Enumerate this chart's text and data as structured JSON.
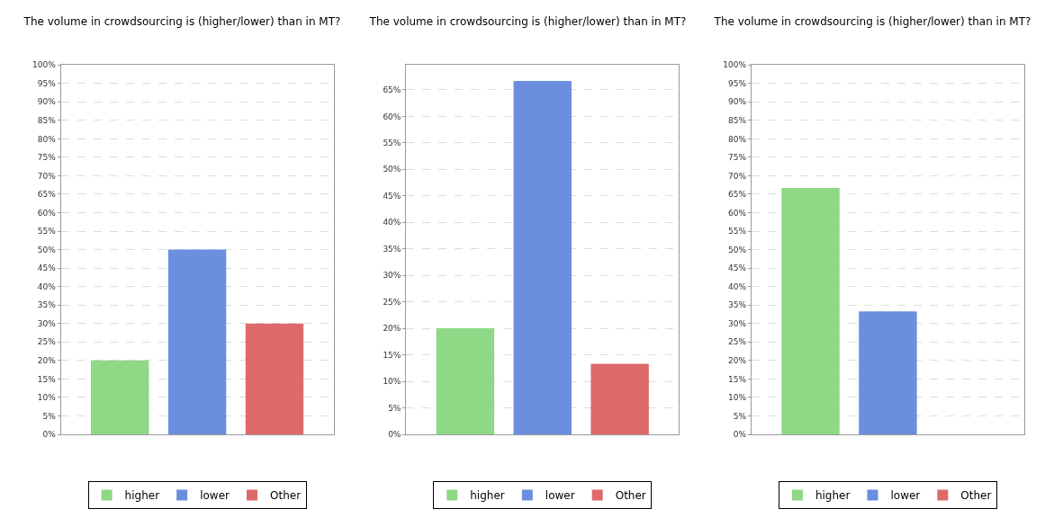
{
  "chart_data": [
    {
      "type": "bar",
      "title": "The volume in crowdsourcing is (higher/lower) than in MT?",
      "categories": [
        null
      ],
      "series": [
        {
          "name": "higher",
          "color": "#88d680",
          "values": [
            20
          ]
        },
        {
          "name": "lower",
          "color": "#6389dc",
          "values": [
            50
          ]
        },
        {
          "name": "Other",
          "color": "#dc6262",
          "values": [
            30
          ]
        }
      ],
      "ylim": [
        0,
        100
      ],
      "yticks": [
        {
          "value": 0,
          "label": "0%"
        },
        {
          "value": 5,
          "label": "5%"
        },
        {
          "value": 10,
          "label": "10%"
        },
        {
          "value": 15,
          "label": "15%"
        },
        {
          "value": 20,
          "label": "20%"
        },
        {
          "value": 25,
          "label": "25%"
        },
        {
          "value": 30,
          "label": "30%"
        },
        {
          "value": 35,
          "label": "35%"
        },
        {
          "value": 40,
          "label": "40%"
        },
        {
          "value": 45,
          "label": "45%"
        },
        {
          "value": 50,
          "label": "50%"
        },
        {
          "value": 55,
          "label": "55%"
        },
        {
          "value": 60,
          "label": "60%"
        },
        {
          "value": 65,
          "label": "65%"
        },
        {
          "value": 70,
          "label": "70%"
        },
        {
          "value": 75,
          "label": "75%"
        },
        {
          "value": 80,
          "label": "80%"
        },
        {
          "value": 85,
          "label": "85%"
        },
        {
          "value": 90,
          "label": "90%"
        },
        {
          "value": 95,
          "label": "95%"
        },
        {
          "value": 100,
          "label": "100%"
        }
      ],
      "grid": "y",
      "legend": "bottom",
      "tick_labels": "y"
    },
    {
      "type": "bar",
      "title": "The volume in crowdsourcing is (higher/lower) than in MT?",
      "categories": [
        null
      ],
      "series": [
        {
          "name": "higher",
          "color": "#88d680",
          "values": [
            20
          ]
        },
        {
          "name": "lower",
          "color": "#6389dc",
          "values": [
            66.7
          ]
        },
        {
          "name": "Other",
          "color": "#dc6262",
          "values": [
            13.3
          ]
        }
      ],
      "ylim": [
        0,
        69.7
      ],
      "yticks": [
        {
          "value": 0,
          "label": "0%"
        },
        {
          "value": 5,
          "label": "5%"
        },
        {
          "value": 10,
          "label": "10%"
        },
        {
          "value": 15,
          "label": "15%"
        },
        {
          "value": 20,
          "label": "20%"
        },
        {
          "value": 25,
          "label": "25%"
        },
        {
          "value": 30,
          "label": "30%"
        },
        {
          "value": 35,
          "label": "35%"
        },
        {
          "value": 40,
          "label": "40%"
        },
        {
          "value": 45,
          "label": "45%"
        },
        {
          "value": 50,
          "label": "50%"
        },
        {
          "value": 55,
          "label": "55%"
        },
        {
          "value": 60,
          "label": "60%"
        },
        {
          "value": 65,
          "label": "65%"
        }
      ],
      "grid": "y",
      "legend": "bottom",
      "tick_labels": "y"
    },
    {
      "type": "bar",
      "title": "The volume in crowdsourcing is (higher/lower) than in MT?",
      "categories": [
        null
      ],
      "series": [
        {
          "name": "higher",
          "color": "#88d680",
          "values": [
            66.7
          ]
        },
        {
          "name": "lower",
          "color": "#6389dc",
          "values": [
            33.3
          ]
        },
        {
          "name": "Other",
          "color": "#dc6262",
          "values": [
            0
          ]
        }
      ],
      "ylim": [
        0,
        100
      ],
      "yticks": [
        {
          "value": 0,
          "label": "0%"
        },
        {
          "value": 5,
          "label": "5%"
        },
        {
          "value": 10,
          "label": "10%"
        },
        {
          "value": 15,
          "label": "15%"
        },
        {
          "value": 20,
          "label": "20%"
        },
        {
          "value": 25,
          "label": "25%"
        },
        {
          "value": 30,
          "label": "30%"
        },
        {
          "value": 35,
          "label": "35%"
        },
        {
          "value": 40,
          "label": "40%"
        },
        {
          "value": 45,
          "label": "45%"
        },
        {
          "value": 50,
          "label": "50%"
        },
        {
          "value": 55,
          "label": "55%"
        },
        {
          "value": 60,
          "label": "60%"
        },
        {
          "value": 65,
          "label": "65%"
        },
        {
          "value": 70,
          "label": "70%"
        },
        {
          "value": 75,
          "label": "75%"
        },
        {
          "value": 80,
          "label": "80%"
        },
        {
          "value": 85,
          "label": "85%"
        },
        {
          "value": 90,
          "label": "90%"
        },
        {
          "value": 95,
          "label": "95%"
        },
        {
          "value": 100,
          "label": "100%"
        }
      ],
      "grid": "y",
      "legend": "bottom",
      "tick_labels": "y"
    }
  ]
}
